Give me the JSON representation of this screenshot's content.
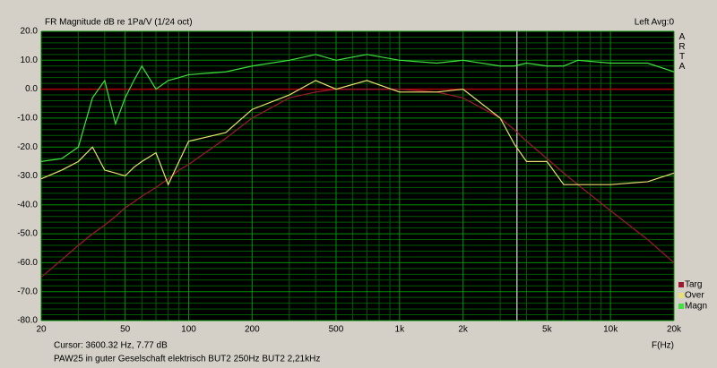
{
  "chart_data": {
    "type": "line",
    "title": "FR Magnitude dB re 1Pa/V (1/24 oct)",
    "channel_label": "Left  Avg:0",
    "brand": "ARTA",
    "x_label": "F(Hz)",
    "cursor_text": "Cursor: 3600.32 Hz, 7.77 dB",
    "cursor_freq": 3600.32,
    "caption": "PAW25 in guter Geselschaft elektrisch BUT2  250Hz BUT2   2,21kHz",
    "log_x": true,
    "grid": true,
    "legend": "bottom-right",
    "ref_line": 0,
    "ref_color": "#b00000",
    "xlim": [
      20,
      20000
    ],
    "ylim": [
      -80,
      20
    ],
    "xticks": [
      20,
      50,
      100,
      200,
      500,
      {
        "value": 1000,
        "label": "1k"
      },
      {
        "value": 2000,
        "label": "2k"
      },
      {
        "value": 5000,
        "label": "5k"
      },
      {
        "value": 10000,
        "label": "10k"
      },
      {
        "value": 20000,
        "label": "20k"
      }
    ],
    "xminor": [
      30,
      40,
      60,
      70,
      80,
      90,
      300,
      400,
      600,
      700,
      800,
      900,
      3000,
      4000,
      6000,
      7000,
      8000,
      9000
    ],
    "yticks": [
      {
        "value": 20,
        "label": "20.0"
      },
      {
        "value": 10,
        "label": "10.0"
      },
      {
        "value": 0,
        "label": "0.0"
      },
      {
        "value": -10,
        "label": "-10.0"
      },
      {
        "value": -20,
        "label": "-20.0"
      },
      {
        "value": -30,
        "label": "-30.0"
      },
      {
        "value": -40,
        "label": "-40.0"
      },
      {
        "value": -50,
        "label": "-50.0"
      },
      {
        "value": -60,
        "label": "-60.0"
      },
      {
        "value": -70,
        "label": "-70.0"
      },
      {
        "value": -80,
        "label": "-80.0"
      }
    ],
    "yminor": [
      18,
      16,
      14,
      12,
      8,
      6,
      4,
      2,
      -2,
      -4,
      -6,
      -8,
      -12,
      -14,
      -16,
      -18,
      -22,
      -24,
      -26,
      -28,
      -32,
      -34,
      -36,
      -38,
      -42,
      -44,
      -46,
      -48,
      -52,
      -54,
      -56,
      -58,
      -62,
      -64,
      -66,
      -68,
      -72,
      -74,
      -76,
      -78
    ],
    "x": [
      20,
      25,
      30,
      35,
      40,
      45,
      50,
      55,
      60,
      70,
      80,
      90,
      100,
      150,
      200,
      300,
      400,
      500,
      700,
      1000,
      1500,
      2000,
      3000,
      3500,
      4000,
      5000,
      6000,
      7000,
      10000,
      15000,
      20000
    ],
    "series": [
      {
        "name": "Targ",
        "color": "#a01830",
        "values": [
          -65,
          -59,
          -54,
          -50,
          -47,
          -44,
          -41,
          -39,
          -37,
          -34,
          -31,
          -28,
          -26,
          -17,
          -10,
          -3,
          -1,
          0,
          0,
          0,
          -1,
          -3,
          -10,
          -14,
          -18,
          -24,
          -29,
          -33,
          -42,
          -52,
          -60
        ]
      },
      {
        "name": "Over",
        "color": "#e8e070",
        "values": [
          -31,
          -28,
          -25,
          -20,
          -28,
          -29,
          -30,
          -27,
          -25,
          -22,
          -33,
          -25,
          -18,
          -15,
          -7,
          -2,
          3,
          0,
          3,
          -1,
          -1,
          0,
          -10,
          -19,
          -25,
          -25,
          -33,
          -33,
          -33,
          -32,
          -29
        ]
      },
      {
        "name": "Magn",
        "color": "#40e040",
        "values": [
          -25,
          -24,
          -20,
          -3,
          3,
          -12,
          -3,
          3,
          8,
          0,
          3,
          4,
          5,
          6,
          8,
          10,
          12,
          10,
          12,
          10,
          9,
          10,
          8,
          8,
          9,
          8,
          8,
          10,
          9,
          9,
          6
        ]
      }
    ]
  }
}
